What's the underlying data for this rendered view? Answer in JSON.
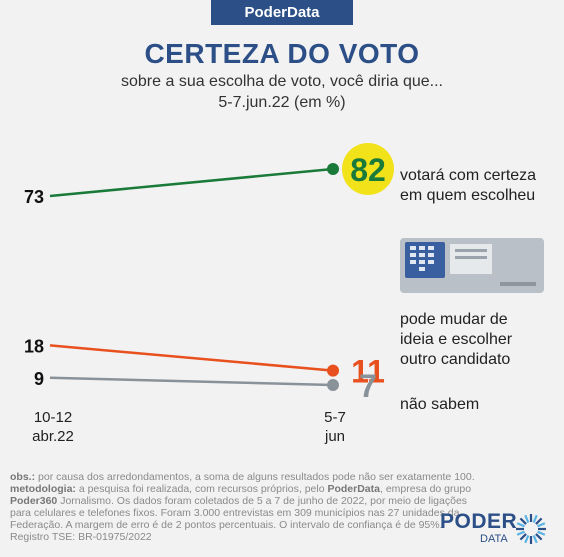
{
  "brand_tab": "PoderData",
  "header": {
    "title": "CERTEZA DO VOTO",
    "subtitle": "sobre a sua escolha de voto, você diria que...",
    "date": "5-7.jun.22 (em %)"
  },
  "chart_data": {
    "type": "line",
    "x": [
      "10-12 abr.22",
      "5-7 jun"
    ],
    "x_labels": [
      [
        "10-12",
        "abr.22"
      ],
      [
        "5-7",
        "jun"
      ]
    ],
    "series": [
      {
        "name": "votará com certeza em quem escolheu",
        "name_lines": [
          "votará com certeza",
          "em quem escolheu"
        ],
        "values": [
          73,
          82
        ],
        "color": "#1a7a3a"
      },
      {
        "name": "pode mudar de ideia e escolher outro candidato",
        "name_lines": [
          "pode mudar de",
          "ideia e escolher",
          "outro candidato"
        ],
        "values": [
          18,
          11
        ],
        "color": "#e8501e"
      },
      {
        "name": "não sabem",
        "name_lines": [
          "não sabem"
        ],
        "values": [
          9,
          7
        ],
        "color": "#8a9299"
      }
    ],
    "highlight_color": "#f2e21a"
  },
  "notes": {
    "obs_label": "obs.:",
    "obs_text": " por causa dos arredondamentos, a soma de alguns resultados pode não ser exatamente 100.",
    "met_label": "metodologia:",
    "met_text_1": " a pesquisa foi realizada, com recursos próprios, pelo ",
    "met_bold_1": "PoderData",
    "met_text_2": ", empresa do grupo ",
    "met_bold_2": "Poder360",
    "met_text_3": " Jornalismo. Os dados foram coletados de 5 a 7 de junho de 2022, por meio de ligações para celulares e telefones fixos. Foram 3.000 entrevistas em 309 municípios nas 27 unidades da Federação. A margem de erro é de 2 pontos percentuais. O intervalo de confiança é de 95%. Registro TSE: BR-01975/2022"
  },
  "logo": {
    "word": "PODER",
    "sub": "DATA"
  },
  "icons": {
    "illustration": "ballot-box-icon",
    "logo_mark": "sunburst-icon"
  }
}
